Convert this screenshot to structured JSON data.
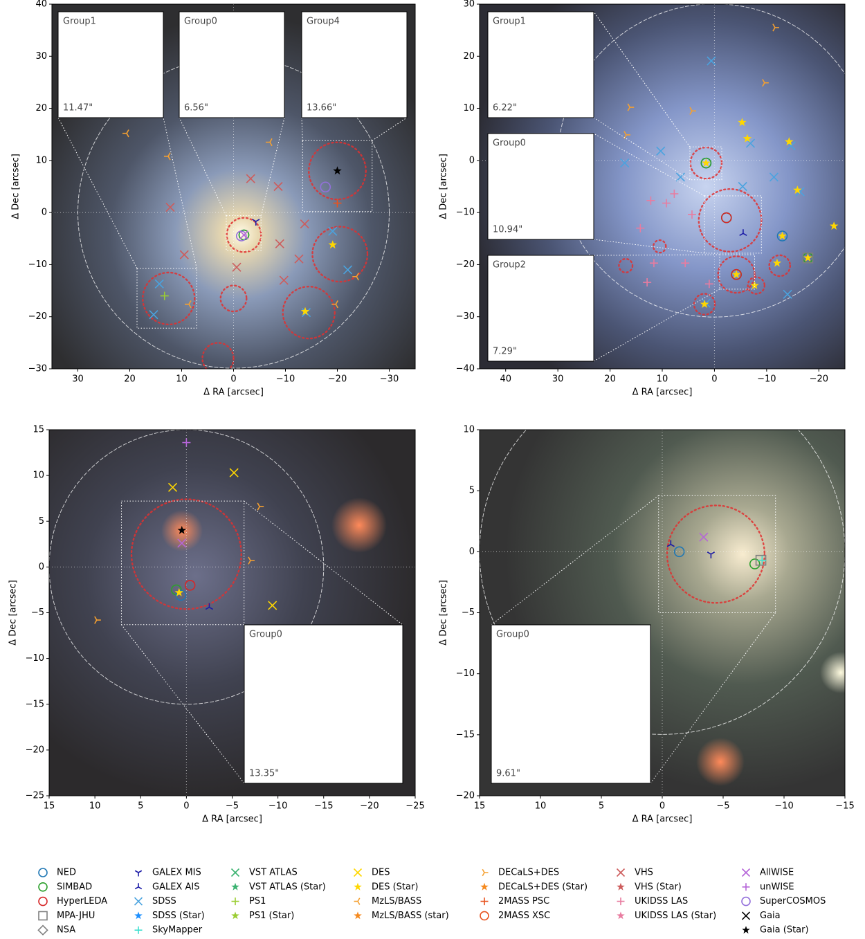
{
  "chart_data": [
    {
      "type": "scatter",
      "xlabel": "Δ RA [arcsec]",
      "ylabel": "Δ Dec [arcsec]",
      "xlim": [
        35,
        -35
      ],
      "ylim": [
        -30,
        40
      ],
      "xticks": [
        30,
        20,
        10,
        0,
        {
          "value": -10,
          "label": "−10"
        },
        {
          "value": -20,
          "label": "−20"
        },
        {
          "value": -30,
          "label": "−30"
        }
      ],
      "yticks": [
        {
          "value": -30,
          "label": "−30"
        },
        {
          "value": -20,
          "label": "−20"
        },
        {
          "value": -10,
          "label": "−10"
        },
        0,
        10,
        20,
        30,
        40
      ],
      "circles": [
        [
          0,
          0,
          30,
          "white"
        ],
        [
          -2,
          -4.3,
          3.3,
          "red"
        ],
        [
          -20,
          8,
          5.5,
          "red"
        ],
        [
          12.5,
          -16.5,
          5,
          "red"
        ],
        [
          0,
          -16.5,
          2.5,
          "red"
        ],
        [
          -20.5,
          -8,
          5.3,
          "red"
        ],
        [
          -14.5,
          -19.2,
          5,
          "red"
        ],
        [
          3,
          -28,
          3,
          "red"
        ]
      ],
      "boxes": [
        [
          18.6,
          -10.7,
          7.1,
          -22.2
        ],
        [
          1.4,
          -0.6,
          -5.3,
          -7.3
        ],
        [
          -13.3,
          13.8,
          -26.7,
          0.2
        ]
      ],
      "insets": [
        {
          "label": "Group1",
          "scale": "11.47\""
        },
        {
          "label": "Group0",
          "scale": "6.56\""
        },
        {
          "label": "Group4",
          "scale": "13.66\""
        }
      ],
      "series": [
        {
          "name": "NED",
          "x": [
            -2
          ],
          "y": [
            -4.3
          ]
        },
        {
          "name": "SIMBAD",
          "x": [
            -2
          ],
          "y": [
            -4.3
          ]
        },
        {
          "name": "SuperCOSMOS",
          "x": [
            -1.5,
            -17.7
          ],
          "y": [
            -4.5,
            4.9
          ]
        },
        {
          "name": "AllWISE",
          "x": [
            -2
          ],
          "y": [
            -4.3
          ]
        },
        {
          "name": "GALEX MIS",
          "x": [
            -4.3
          ],
          "y": [
            -1.7
          ]
        },
        {
          "name": "Gaia (Star)",
          "x": [
            -20
          ],
          "y": [
            8
          ]
        },
        {
          "name": "SDSS",
          "x": [
            14.3,
            15.4,
            -19.1,
            -22,
            -14
          ],
          "y": [
            -13.7,
            -19.6,
            -3.6,
            -11,
            -19.2
          ]
        },
        {
          "name": "VHS",
          "x": [
            17.1,
            12.2,
            9.5,
            -3.3,
            -0.6,
            -8.9,
            -12.6,
            -9.7,
            -8.6,
            -13.7
          ],
          "y": [
            34.7,
            1,
            -8.1,
            6.5,
            -10.5,
            -6,
            -8.9,
            -13,
            5,
            -2.2
          ]
        },
        {
          "name": "MzLS/BASS",
          "x": [
            20.6,
            12.6,
            8.6,
            -19.7,
            -23.7,
            -7
          ],
          "y": [
            15.2,
            10.8,
            -17.6,
            -17.6,
            -12.3,
            13.5
          ]
        },
        {
          "name": "DES (Star)",
          "x": [
            -19.1,
            -13.8
          ],
          "y": [
            -6.2,
            -19
          ]
        },
        {
          "name": "PS1",
          "x": [
            13.3
          ],
          "y": [
            -16
          ]
        },
        {
          "name": "2MASS PSC",
          "x": [
            -20
          ],
          "y": [
            1.8
          ]
        }
      ]
    },
    {
      "type": "scatter",
      "xlabel": "Δ RA [arcsec]",
      "ylabel": "Δ Dec [arcsec]",
      "xlim": [
        45,
        -25
      ],
      "ylim": [
        -40,
        30
      ],
      "xticks": [
        40,
        30,
        20,
        10,
        0,
        {
          "value": -10,
          "label": "−10"
        },
        {
          "value": -20,
          "label": "−20"
        }
      ],
      "yticks": [
        {
          "value": -40,
          "label": "−40"
        },
        {
          "value": -30,
          "label": "−30"
        },
        {
          "value": -20,
          "label": "−20"
        },
        {
          "value": -10,
          "label": "−10"
        },
        0,
        10,
        20,
        30
      ],
      "circles": [
        [
          0,
          0,
          30,
          "white"
        ],
        [
          1.6,
          -0.5,
          3,
          "red"
        ],
        [
          -3,
          -11.5,
          6,
          "red"
        ],
        [
          -4.2,
          -21.9,
          3.5,
          "red"
        ],
        [
          -12.5,
          -20.2,
          2,
          "red"
        ],
        [
          10.5,
          -16.5,
          1.2,
          "red"
        ],
        [
          17,
          -20.2,
          1.3,
          "red"
        ],
        [
          1.9,
          -27.6,
          2,
          "red"
        ],
        [
          -8,
          -24,
          1.6,
          "red"
        ]
      ],
      "boxes": [
        [
          4.7,
          2.6,
          -1.4,
          -3.7
        ],
        [
          1.9,
          -6.8,
          -9,
          -17.8
        ],
        [
          -1,
          -18.1,
          -7.7,
          -24.7
        ]
      ],
      "insets": [
        {
          "label": "Group1",
          "scale": "6.22\""
        },
        {
          "label": "Group0",
          "scale": "10.94\""
        },
        {
          "label": "Group2",
          "scale": "7.29\""
        }
      ],
      "series": [
        {
          "name": "NED",
          "x": [
            1.6,
            -2.3,
            -13,
            -4.2
          ],
          "y": [
            -0.5,
            -11,
            -14.5,
            -21.9
          ]
        },
        {
          "name": "SIMBAD",
          "x": [
            1.6,
            -2.3,
            -17.9,
            -4.2
          ],
          "y": [
            -0.5,
            -11,
            -18.7,
            -21.9
          ]
        },
        {
          "name": "HyperLEDA",
          "x": [
            -2.3,
            -4.2
          ],
          "y": [
            -11,
            -21.9
          ]
        },
        {
          "name": "MPA-JHU",
          "x": [
            -17.9
          ],
          "y": [
            -18.7
          ]
        },
        {
          "name": "SDSS",
          "x": [
            0.6,
            -5.4,
            6.5,
            10.3,
            17.2,
            -6.9,
            -14.7,
            -16.4,
            -14,
            1.6,
            -11.4
          ],
          "y": [
            19.1,
            -5,
            -3.2,
            1.8,
            -0.5,
            3.3,
            2.8,
            -6,
            -25.7,
            -27.4,
            -3.2
          ]
        },
        {
          "name": "UKIDSS LAS",
          "x": [
            12.2,
            9.2,
            7.7,
            4.3,
            14.2,
            11.6,
            5.6,
            1,
            12.9
          ],
          "y": [
            -7.7,
            -8.2,
            -6.4,
            -10.4,
            -13,
            -19.7,
            -19.7,
            -23.7,
            -23.4
          ]
        },
        {
          "name": "DECaLS+DES",
          "x": [
            -11.6,
            -9.6,
            16.2,
            16.9,
            4.3
          ],
          "y": [
            25.5,
            14.9,
            10.2,
            4.9,
            9.5
          ]
        },
        {
          "name": "DES (Star)",
          "x": [
            1.6,
            -13,
            -17.9,
            -4.2,
            -22.9,
            -12,
            -7.7,
            1.9,
            -14.3,
            -5.3,
            -6.3,
            -15.9
          ],
          "y": [
            -0.5,
            -14.5,
            -18.7,
            -21.9,
            -12.6,
            -19.7,
            -24,
            -27.6,
            3.6,
            7.3,
            4.2,
            -5.7
          ]
        },
        {
          "name": "GALEX AIS",
          "x": [
            -5.5
          ],
          "y": [
            -14
          ]
        }
      ]
    },
    {
      "type": "scatter",
      "xlabel": "Δ RA [arcsec]",
      "ylabel": "Δ Dec [arcsec]",
      "xlim": [
        15,
        -25
      ],
      "ylim": [
        -25,
        15
      ],
      "xticks": [
        15,
        10,
        5,
        0,
        {
          "value": -5,
          "label": "−5"
        },
        {
          "value": -10,
          "label": "−10"
        },
        {
          "value": -15,
          "label": "−15"
        },
        {
          "value": -20,
          "label": "−20"
        },
        {
          "value": -25,
          "label": "−25"
        }
      ],
      "yticks": [
        {
          "value": -25,
          "label": "−25"
        },
        {
          "value": -20,
          "label": "−20"
        },
        {
          "value": -15,
          "label": "−15"
        },
        {
          "value": -10,
          "label": "−10"
        },
        {
          "value": -5,
          "label": "−5"
        },
        0,
        5,
        10,
        15
      ],
      "circles": [
        [
          0,
          0,
          15,
          "white"
        ],
        [
          0,
          1.4,
          6,
          "red"
        ]
      ],
      "boxes": [
        [
          7.1,
          7.2,
          -6.3,
          -6.3
        ]
      ],
      "insets": [
        {
          "label": "Group0",
          "scale": "13.35\""
        }
      ],
      "series": [
        {
          "name": "Gaia (Star)",
          "x": [
            0.5
          ],
          "y": [
            4
          ]
        },
        {
          "name": "HyperLEDA",
          "x": [
            -0.4
          ],
          "y": [
            -2
          ]
        },
        {
          "name": "SIMBAD",
          "x": [
            1.1
          ],
          "y": [
            -2.5
          ]
        },
        {
          "name": "NED",
          "x": [
            0.6
          ],
          "y": [
            -3.1
          ]
        },
        {
          "name": "DES (Star)",
          "x": [
            0.8
          ],
          "y": [
            -2.8
          ]
        },
        {
          "name": "GALEX AIS",
          "x": [
            -2.5
          ],
          "y": [
            -4.4
          ]
        },
        {
          "name": "DES",
          "x": [
            1.5,
            -5.2,
            -9.4
          ],
          "y": [
            8.7,
            10.3,
            -4.2
          ]
        },
        {
          "name": "DECaLS+DES",
          "x": [
            9.8,
            -8,
            -7
          ],
          "y": [
            -5.8,
            6.6,
            0.7
          ]
        },
        {
          "name": "unWISE",
          "x": [
            0
          ],
          "y": [
            13.6
          ]
        },
        {
          "name": "AllWISE",
          "x": [
            0.5
          ],
          "y": [
            2.6
          ]
        }
      ]
    },
    {
      "type": "scatter",
      "xlabel": "Δ RA [arcsec]",
      "ylabel": "Δ Dec [arcsec]",
      "xlim": [
        15,
        -15
      ],
      "ylim": [
        -20,
        10
      ],
      "xticks": [
        15,
        10,
        5,
        0,
        {
          "value": -5,
          "label": "−5"
        },
        {
          "value": -10,
          "label": "−10"
        },
        {
          "value": -15,
          "label": "−15"
        }
      ],
      "yticks": [
        {
          "value": -20,
          "label": "−20"
        },
        {
          "value": -15,
          "label": "−15"
        },
        {
          "value": -10,
          "label": "−10"
        },
        {
          "value": -5,
          "label": "−5"
        },
        0,
        5,
        10
      ],
      "circles": [
        [
          0,
          0,
          15,
          "white"
        ],
        [
          -4.4,
          -0.2,
          4,
          "red"
        ]
      ],
      "boxes": [
        [
          0.3,
          4.6,
          -9.3,
          -5
        ]
      ],
      "insets": [
        {
          "label": "Group0",
          "scale": "9.61\""
        }
      ],
      "series": [
        {
          "name": "NED",
          "x": [
            -1.4
          ],
          "y": [
            0
          ]
        },
        {
          "name": "GALEX AIS",
          "x": [
            -0.7
          ],
          "y": [
            0.6
          ]
        },
        {
          "name": "GALEX MIS",
          "x": [
            -4
          ],
          "y": [
            -0.2
          ]
        },
        {
          "name": "AllWISE",
          "x": [
            -3.4
          ],
          "y": [
            1.2
          ]
        },
        {
          "name": "SIMBAD",
          "x": [
            -7.6
          ],
          "y": [
            -1
          ]
        },
        {
          "name": "MPA-JHU",
          "x": [
            -8.1
          ],
          "y": [
            -0.7
          ]
        },
        {
          "name": "SkyMapper",
          "x": [
            -8.2
          ],
          "y": [
            -0.7
          ]
        }
      ]
    }
  ],
  "legend": [
    [
      {
        "name": "NED",
        "color": "#1f77b4",
        "marker": "circle"
      },
      {
        "name": "SIMBAD",
        "color": "#2ca02c",
        "marker": "circle"
      },
      {
        "name": "HyperLEDA",
        "color": "#d62728",
        "marker": "circle"
      },
      {
        "name": "MPA-JHU",
        "color": "#7f7f7f",
        "marker": "square"
      },
      {
        "name": "NSA",
        "color": "#7f7f7f",
        "marker": "diamond"
      }
    ],
    [
      {
        "name": "GALEX MIS",
        "color": "#1a1aa6",
        "marker": "tri_down"
      },
      {
        "name": "GALEX AIS",
        "color": "#1a1aa6",
        "marker": "tri_up"
      },
      {
        "name": "SDSS",
        "color": "#4aa3df",
        "marker": "x"
      },
      {
        "name": "SDSS (Star)",
        "color": "#1e90ff",
        "marker": "star"
      },
      {
        "name": "SkyMapper",
        "color": "#40e0d0",
        "marker": "plus"
      }
    ],
    [
      {
        "name": "VST ATLAS",
        "color": "#3cb371",
        "marker": "x"
      },
      {
        "name": "VST ATLAS (Star)",
        "color": "#3cb371",
        "marker": "star"
      },
      {
        "name": "PS1",
        "color": "#9acd32",
        "marker": "plus"
      },
      {
        "name": "PS1 (Star)",
        "color": "#9acd32",
        "marker": "star"
      }
    ],
    [
      {
        "name": "DES",
        "color": "#ffd700",
        "marker": "x"
      },
      {
        "name": "DES (Star)",
        "color": "#ffd700",
        "marker": "star"
      },
      {
        "name": "MzLS/BASS",
        "color": "#f5a030",
        "marker": "tri_left"
      },
      {
        "name": "MzLS/BASS (star)",
        "color": "#f58a1f",
        "marker": "star"
      }
    ],
    [
      {
        "name": "DECaLS+DES",
        "color": "#f5a030",
        "marker": "tri_right"
      },
      {
        "name": "DECaLS+DES (Star)",
        "color": "#f58a1f",
        "marker": "star"
      },
      {
        "name": "2MASS PSC",
        "color": "#e8531f",
        "marker": "plus"
      },
      {
        "name": "2MASS XSC",
        "color": "#e8531f",
        "marker": "circle"
      }
    ],
    [
      {
        "name": "VHS",
        "color": "#cd5c5c",
        "marker": "x"
      },
      {
        "name": "VHS (Star)",
        "color": "#cd5c5c",
        "marker": "star"
      },
      {
        "name": "UKIDSS LAS",
        "color": "#e87ca0",
        "marker": "plus"
      },
      {
        "name": "UKIDSS LAS (Star)",
        "color": "#e87ca0",
        "marker": "star"
      }
    ],
    [
      {
        "name": "AllWISE",
        "color": "#b565d8",
        "marker": "x"
      },
      {
        "name": "unWISE",
        "color": "#b565d8",
        "marker": "plus"
      },
      {
        "name": "SuperCOSMOS",
        "color": "#9370db",
        "marker": "circle"
      },
      {
        "name": "Gaia",
        "color": "#000000",
        "marker": "x"
      },
      {
        "name": "Gaia (Star)",
        "color": "#000000",
        "marker": "star"
      }
    ]
  ]
}
